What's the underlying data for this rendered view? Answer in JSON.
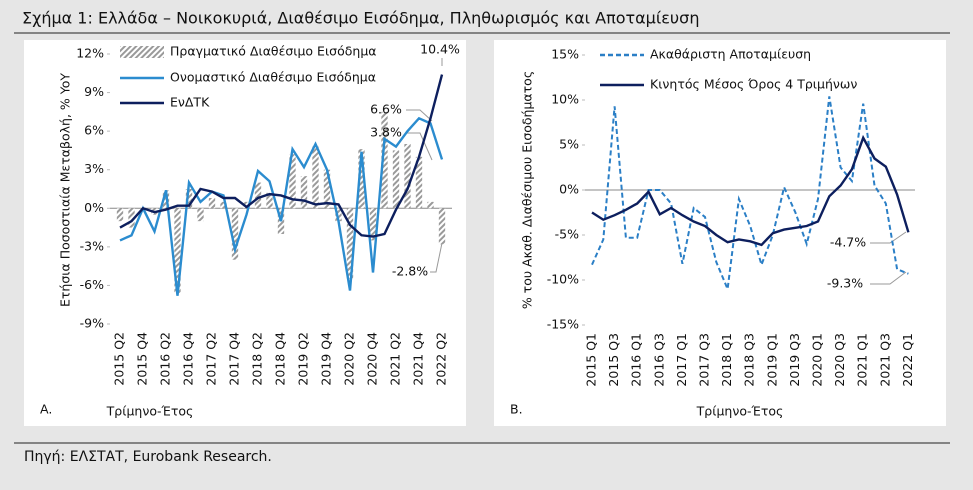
{
  "title": "Σχήμα 1: Ελλάδα – Νοικοκυριά, Διαθέσιμο Εισόδημα, Πληθωρισμός και Αποταμίευση",
  "source": "Πηγή: ΕΛΣΤΑΤ, Eurobank Research.",
  "chart_data": [
    {
      "type": "bar",
      "panel": "A.",
      "x_label": "Τρίμηνο-Έτος",
      "y_label": "Ετήσια Ποσοστιαία Μεταβολή, % YoY",
      "categories": [
        "2015 Q2",
        null,
        "2015 Q4",
        null,
        "2016 Q2",
        null,
        "2016 Q4",
        null,
        "2017 Q2",
        null,
        "2017 Q4",
        null,
        "2018 Q2",
        null,
        "2018 Q4",
        null,
        "2019 Q2",
        null,
        "2019 Q4",
        null,
        "2020 Q2",
        null,
        "2020 Q4",
        null,
        "2021 Q2",
        null,
        "2021 Q4",
        null,
        "2022 Q2"
      ],
      "series": [
        {
          "name": "Πραγματικό Διαθέσιμο Εισόδημα",
          "type": "bar",
          "color": "#9a9a9a",
          "values": [
            -1.0,
            -1.5,
            0,
            -0.5,
            1.4,
            -6.6,
            1.5,
            -1.0,
            0.8,
            0.5,
            -4.0,
            0.5,
            2.0,
            1.2,
            -2.0,
            4.2,
            2.5,
            4.8,
            3.0,
            -1.0,
            -5.5,
            4.6,
            -2.5,
            7.5,
            4.5,
            5.0,
            4.0,
            0.5,
            -2.8
          ]
        },
        {
          "name": "Ονομαστικό Διαθέσιμο Εισόδημα",
          "type": "line",
          "color": "#2b8ccf",
          "values": [
            -2.5,
            -2.1,
            0,
            -1.8,
            1.4,
            -6.8,
            2.0,
            0.5,
            1.3,
            1.0,
            -3.2,
            -0.5,
            2.9,
            2.1,
            -1.0,
            4.6,
            3.2,
            5.0,
            3.0,
            -1.0,
            -6.4,
            4.4,
            -5.0,
            5.4,
            4.8,
            6.0,
            7.0,
            6.6,
            3.8
          ]
        },
        {
          "name": "ΕνΔΤΚ",
          "type": "line",
          "color": "#0d1f5e",
          "values": [
            -1.5,
            -1.0,
            0,
            -0.3,
            -0.1,
            0.2,
            0.2,
            1.5,
            1.3,
            0.8,
            0.8,
            0.1,
            0.8,
            1.1,
            1.0,
            0.7,
            0.6,
            0.3,
            0.4,
            0.3,
            -1.3,
            -2.1,
            -2.2,
            -2.0,
            -0.1,
            1.5,
            4.0,
            7.0,
            10.4
          ]
        }
      ],
      "annotations": [
        "10.4%",
        "6.6%",
        "3.8%",
        "-2.8%"
      ],
      "ylim": [
        -9,
        12
      ],
      "yticks": [
        {
          "value": -9,
          "label": "-9%"
        },
        {
          "value": -6,
          "label": "-6%"
        },
        {
          "value": -3,
          "label": "-3%"
        },
        {
          "value": 0,
          "label": "0%"
        },
        {
          "value": 3,
          "label": "3%"
        },
        {
          "value": 6,
          "label": "6%"
        },
        {
          "value": 9,
          "label": "9%"
        },
        {
          "value": 12,
          "label": "12%"
        }
      ],
      "legend": "upper left"
    },
    {
      "type": "line",
      "panel": "B.",
      "x_label": "Τρίμηνο-Έτος",
      "y_label": "% του Ακαθ. Διαθέσιμου Εισοδήματος",
      "categories": [
        "2015 Q1",
        null,
        "2015 Q3",
        null,
        "2016 Q1",
        null,
        "2016 Q3",
        null,
        "2017 Q1",
        null,
        "2017 Q3",
        null,
        "2018 Q1",
        null,
        "2018 Q3",
        null,
        "2019 Q1",
        null,
        "2019 Q3",
        null,
        "2020 Q1",
        null,
        "2020 Q3",
        null,
        "2021 Q1",
        null,
        "2021 Q3",
        null,
        "2022 Q1"
      ],
      "series": [
        {
          "name": "Ακαθάριστη Αποταμίευση",
          "type": "line",
          "dash": true,
          "color": "#2b7fc6",
          "values": [
            -8.3,
            -5.5,
            9.3,
            -5.3,
            -5.3,
            0,
            0,
            -1.5,
            -8.2,
            -2.0,
            -3.0,
            -8.0,
            -11.0,
            -1.0,
            -4.0,
            -8.3,
            -5.0,
            0.3,
            -2.5,
            -6.0,
            -1.0,
            10.4,
            2.5,
            1.0,
            9.6,
            0.5,
            -1.5,
            -8.8,
            -9.3
          ]
        },
        {
          "name": "Κινητός Μέσος Όρος 4 Τριμήνων",
          "type": "line",
          "color": "#0d1f5e",
          "values": [
            -2.5,
            -3.3,
            -2.8,
            -2.2,
            -1.5,
            -0.2,
            -2.7,
            -2.0,
            -2.8,
            -3.5,
            -4.0,
            -5.0,
            -5.8,
            -5.5,
            -5.7,
            -6.1,
            -4.8,
            -4.4,
            -4.2,
            -4.0,
            -3.5,
            -0.7,
            0.5,
            2.3,
            5.8,
            3.5,
            2.6,
            -0.5,
            -4.7
          ]
        }
      ],
      "annotations": [
        "-4.7%",
        "-9.3%"
      ],
      "ylim": [
        -15,
        15
      ],
      "yticks": [
        {
          "value": -15,
          "label": "-15%"
        },
        {
          "value": -10,
          "label": "-10%"
        },
        {
          "value": -5,
          "label": "-5%"
        },
        {
          "value": 0,
          "label": "0%"
        },
        {
          "value": 5,
          "label": "5%"
        },
        {
          "value": 10,
          "label": "10%"
        },
        {
          "value": 15,
          "label": "15%"
        }
      ],
      "legend": "upper left"
    }
  ]
}
